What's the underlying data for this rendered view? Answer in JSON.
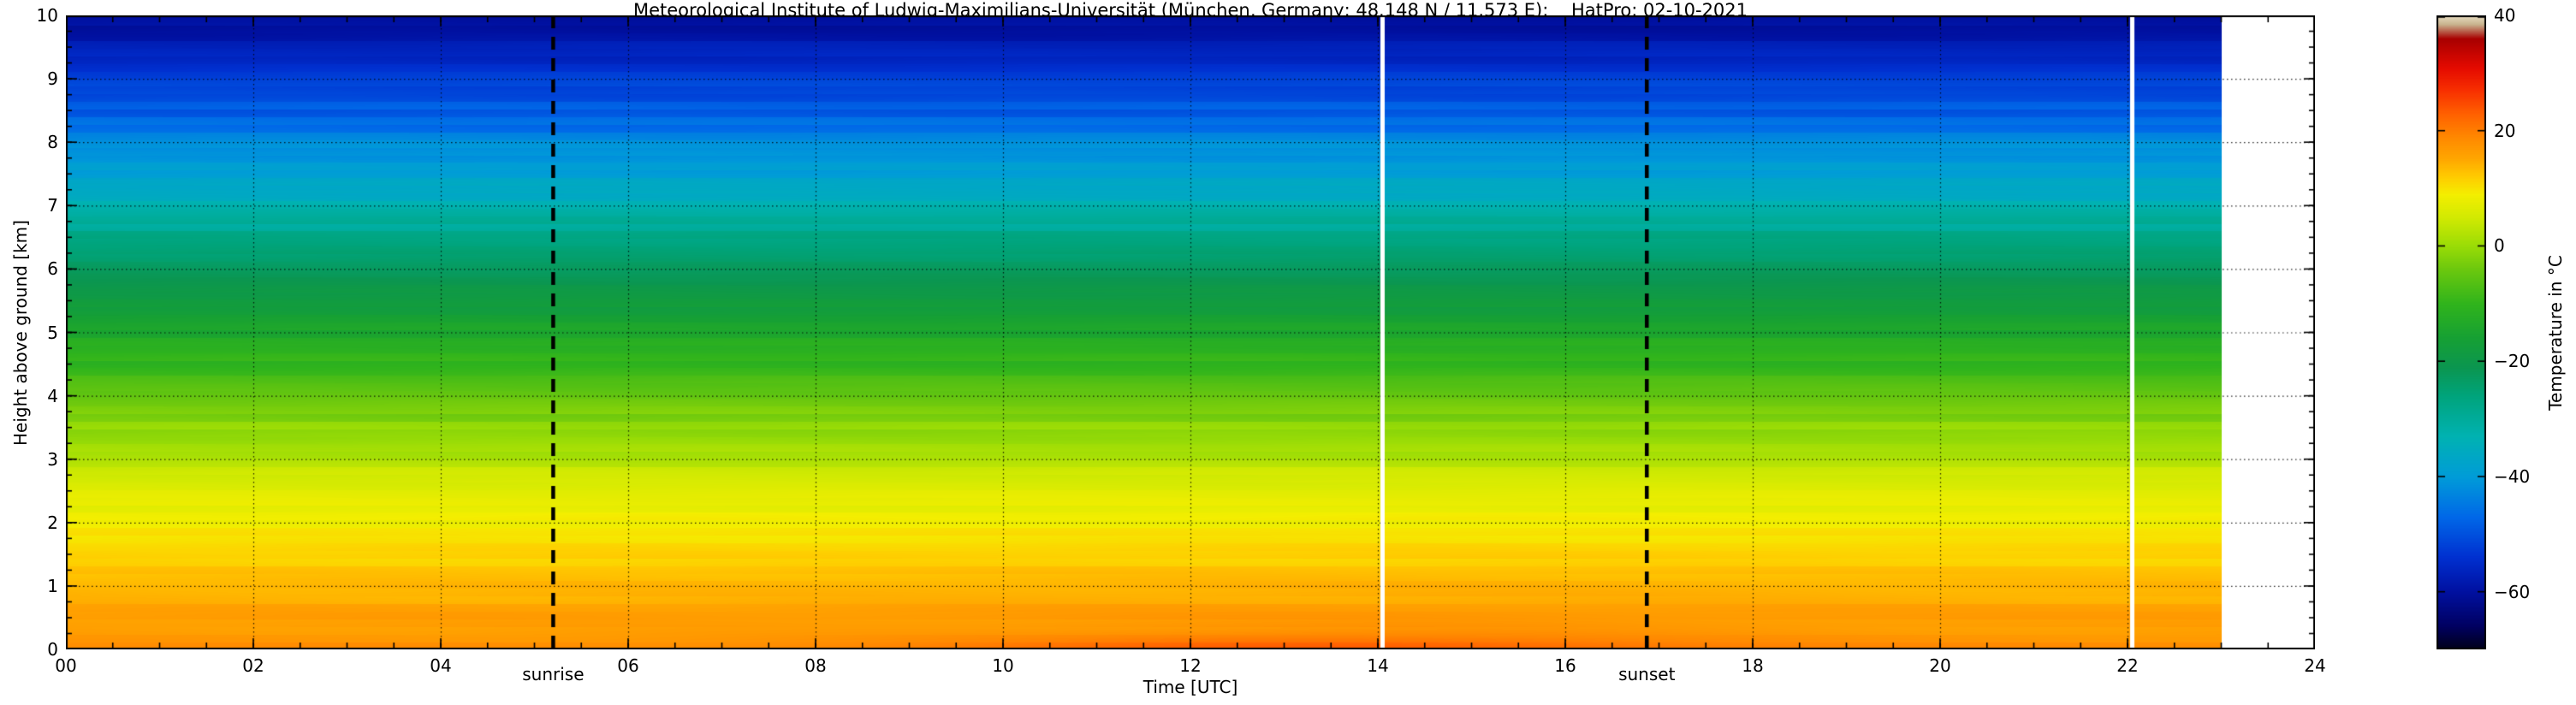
{
  "chart_data": {
    "type": "heatmap",
    "title": "Meteorological Institute of Ludwig-Maximilians-Universität (München, Germany; 48.148 N / 11.573 E):    HatPro: 02-10-2021",
    "xlabel": "Time [UTC]",
    "ylabel": "Height above ground [km]",
    "x_range": [
      0,
      24
    ],
    "y_range": [
      0,
      10
    ],
    "x_ticks": [
      0,
      2,
      4,
      6,
      8,
      10,
      12,
      14,
      16,
      18,
      20,
      22,
      24
    ],
    "x_tick_labels": [
      "00",
      "02",
      "04",
      "06",
      "08",
      "10",
      "12",
      "14",
      "16",
      "18",
      "20",
      "22",
      "24"
    ],
    "x_minor_step": 0.5,
    "y_ticks": [
      0,
      1,
      2,
      3,
      4,
      5,
      6,
      7,
      8,
      9,
      10
    ],
    "y_tick_labels": [
      "0",
      "1",
      "2",
      "3",
      "4",
      "5",
      "6",
      "7",
      "8",
      "9",
      "10"
    ],
    "y_minor_step": 0.25,
    "grid": {
      "x_step": 2,
      "y_step": 1,
      "style": "dotted",
      "color": "#000000"
    },
    "data_end_hour": 23.0,
    "gap_hours": [
      14.05,
      22.05
    ],
    "annotations": {
      "sunrise": {
        "hour": 5.2,
        "label": "sunrise"
      },
      "sunset": {
        "hour": 16.87,
        "label": "sunset"
      }
    },
    "colorbar": {
      "label": "Temperature in °C",
      "range": [
        -70,
        40
      ],
      "ticks": [
        40,
        20,
        0,
        -20,
        -40,
        -60
      ],
      "tick_labels": [
        "40",
        "20",
        "0",
        "−20",
        "−40",
        "−60"
      ]
    },
    "colormap": [
      {
        "v": -70,
        "c": "#000018"
      },
      {
        "v": -66,
        "c": "#000060"
      },
      {
        "v": -60,
        "c": "#0010a0"
      },
      {
        "v": -54,
        "c": "#0030d0"
      },
      {
        "v": -47,
        "c": "#0068e8"
      },
      {
        "v": -40,
        "c": "#009cd8"
      },
      {
        "v": -33,
        "c": "#00b2b2"
      },
      {
        "v": -26,
        "c": "#00a47c"
      },
      {
        "v": -21,
        "c": "#0b9650"
      },
      {
        "v": -16,
        "c": "#16a034"
      },
      {
        "v": -10,
        "c": "#30b41c"
      },
      {
        "v": -4,
        "c": "#6cc80e"
      },
      {
        "v": 0,
        "c": "#9adc06"
      },
      {
        "v": 5,
        "c": "#d2ea02"
      },
      {
        "v": 9,
        "c": "#f4ee00"
      },
      {
        "v": 12,
        "c": "#ffcc00"
      },
      {
        "v": 15,
        "c": "#ffa800"
      },
      {
        "v": 19,
        "c": "#ff8800"
      },
      {
        "v": 23,
        "c": "#ff6000"
      },
      {
        "v": 27,
        "c": "#f83000"
      },
      {
        "v": 31,
        "c": "#e40a00"
      },
      {
        "v": 36,
        "c": "#a80000"
      },
      {
        "v": 38.5,
        "c": "#c8b48e"
      },
      {
        "v": 40,
        "c": "#e8dcc2"
      }
    ],
    "profile": {
      "heights_km": [
        0,
        0.5,
        1,
        1.5,
        2,
        2.5,
        3,
        3.5,
        4,
        4.5,
        5,
        5.5,
        6,
        6.5,
        7,
        7.5,
        8,
        8.5,
        9,
        9.5,
        10
      ],
      "temps_c": [
        18,
        16,
        14,
        11.5,
        9,
        6,
        2.5,
        -1,
        -5,
        -9.5,
        -14,
        -18.5,
        -23,
        -28,
        -33,
        -38,
        -43,
        -48,
        -53,
        -57.5,
        -61
      ]
    },
    "surface_warming": {
      "peak_hour": 13.5,
      "amplitude_c": 4,
      "height_scale_km": 0.25,
      "width_hours": 3.5
    }
  }
}
